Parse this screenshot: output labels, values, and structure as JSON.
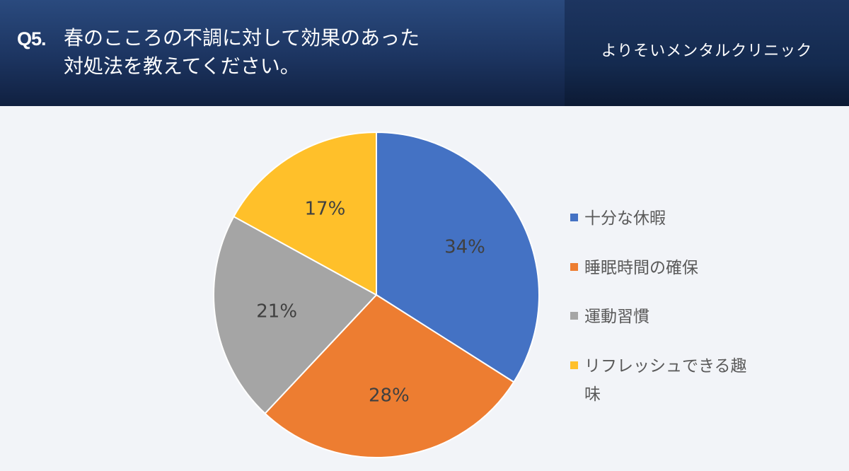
{
  "header": {
    "question_number": "Q5.",
    "question_line1": "春のこころの不調に対して効果のあった",
    "question_line2": "対処法を教えてください。",
    "clinic_name": "よりそいメンタルクリニック"
  },
  "colors": {
    "header_bg": "#1c3460",
    "page_bg": "#f2f4f8"
  },
  "chart_data": {
    "type": "pie",
    "title": "",
    "slices": [
      {
        "label": "十分な休暇",
        "value": 34,
        "display": "34%",
        "color": "#4472c4"
      },
      {
        "label": "睡眠時間の確保",
        "value": 28,
        "display": "28%",
        "color": "#ed7d31"
      },
      {
        "label": "運動習慣",
        "value": 21,
        "display": "21%",
        "color": "#a5a5a5"
      },
      {
        "label": "リフレッシュできる趣味",
        "value": 17,
        "display": "17%",
        "color": "#ffc02a"
      }
    ],
    "legend_position": "right"
  }
}
